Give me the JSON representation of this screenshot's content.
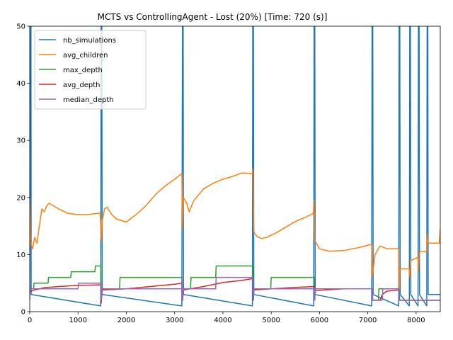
{
  "chart_data": {
    "type": "line",
    "title": "MCTS vs ControllingAgent - Lost (20%) [Time: 720 (s)]",
    "xlabel": "",
    "ylabel": "",
    "xlim": [
      0,
      8500
    ],
    "ylim": [
      0,
      50
    ],
    "x_ticks": [
      0,
      1000,
      2000,
      3000,
      4000,
      5000,
      6000,
      7000,
      8000
    ],
    "y_ticks": [
      0,
      10,
      20,
      30,
      40,
      50
    ],
    "grid": false,
    "legend_position": "upper-left",
    "series": [
      {
        "name": "nb_simulations",
        "color": "#1f77b4",
        "points": [
          [
            0,
            2
          ],
          [
            20,
            60
          ],
          [
            25,
            60
          ],
          [
            30,
            3
          ],
          [
            1470,
            1
          ],
          [
            1480,
            60
          ],
          [
            1490,
            60
          ],
          [
            1500,
            3
          ],
          [
            3150,
            1
          ],
          [
            3165,
            60
          ],
          [
            3175,
            60
          ],
          [
            3185,
            3
          ],
          [
            4610,
            1
          ],
          [
            4620,
            60
          ],
          [
            4630,
            60
          ],
          [
            4640,
            3
          ],
          [
            5880,
            1
          ],
          [
            5890,
            60
          ],
          [
            5900,
            60
          ],
          [
            5910,
            3
          ],
          [
            7080,
            1
          ],
          [
            7090,
            60
          ],
          [
            7100,
            60
          ],
          [
            7110,
            3
          ],
          [
            7640,
            1
          ],
          [
            7650,
            60
          ],
          [
            7660,
            60
          ],
          [
            7670,
            3
          ],
          [
            7860,
            1
          ],
          [
            7870,
            60
          ],
          [
            7880,
            60
          ],
          [
            7890,
            3
          ],
          [
            8040,
            1
          ],
          [
            8050,
            60
          ],
          [
            8060,
            60
          ],
          [
            8070,
            3
          ],
          [
            8220,
            1
          ],
          [
            8230,
            60
          ],
          [
            8240,
            60
          ],
          [
            8250,
            3
          ],
          [
            8500,
            3
          ]
        ]
      },
      {
        "name": "avg_children",
        "color": "#ff7f0e",
        "points": [
          [
            0,
            20
          ],
          [
            20,
            12
          ],
          [
            60,
            11
          ],
          [
            100,
            13
          ],
          [
            150,
            12
          ],
          [
            200,
            15
          ],
          [
            250,
            18
          ],
          [
            300,
            17.5
          ],
          [
            350,
            18.5
          ],
          [
            400,
            19
          ],
          [
            500,
            18.5
          ],
          [
            600,
            18
          ],
          [
            800,
            17.2
          ],
          [
            1000,
            17
          ],
          [
            1200,
            17
          ],
          [
            1400,
            17.2
          ],
          [
            1460,
            17.3
          ],
          [
            1480,
            12.5
          ],
          [
            1500,
            16
          ],
          [
            1550,
            18
          ],
          [
            1600,
            18.3
          ],
          [
            1700,
            17
          ],
          [
            1800,
            16.2
          ],
          [
            2000,
            15.7
          ],
          [
            2200,
            17
          ],
          [
            2400,
            18.5
          ],
          [
            2600,
            20.5
          ],
          [
            2800,
            22
          ],
          [
            3000,
            23.2
          ],
          [
            3150,
            24.2
          ],
          [
            3165,
            14.5
          ],
          [
            3180,
            20
          ],
          [
            3250,
            19
          ],
          [
            3300,
            17.5
          ],
          [
            3400,
            19.5
          ],
          [
            3600,
            21.5
          ],
          [
            3800,
            22.5
          ],
          [
            4000,
            23.2
          ],
          [
            4200,
            23.7
          ],
          [
            4400,
            24.3
          ],
          [
            4610,
            24.2
          ],
          [
            4620,
            25
          ],
          [
            4640,
            14
          ],
          [
            4700,
            13.2
          ],
          [
            4800,
            12.8
          ],
          [
            4900,
            13
          ],
          [
            5100,
            13.8
          ],
          [
            5300,
            14.8
          ],
          [
            5500,
            15.8
          ],
          [
            5700,
            16.5
          ],
          [
            5870,
            17.2
          ],
          [
            5885,
            19.5
          ],
          [
            5900,
            12.5
          ],
          [
            6000,
            11
          ],
          [
            6200,
            10.6
          ],
          [
            6500,
            10.7
          ],
          [
            6800,
            11.2
          ],
          [
            7080,
            11.8
          ],
          [
            7090,
            6
          ],
          [
            7150,
            10
          ],
          [
            7250,
            11.5
          ],
          [
            7400,
            11
          ],
          [
            7640,
            11
          ],
          [
            7650,
            3
          ],
          [
            7660,
            7.5
          ],
          [
            7860,
            7.5
          ],
          [
            7870,
            6
          ],
          [
            7890,
            9
          ],
          [
            8040,
            9.5
          ],
          [
            8050,
            7
          ],
          [
            8060,
            10.5
          ],
          [
            8220,
            10.5
          ],
          [
            8230,
            13.5
          ],
          [
            8240,
            12
          ],
          [
            8480,
            12
          ],
          [
            8500,
            14.5
          ]
        ]
      },
      {
        "name": "max_depth",
        "color": "#2ca02c",
        "points": [
          [
            0,
            4
          ],
          [
            80,
            4
          ],
          [
            90,
            5
          ],
          [
            380,
            5
          ],
          [
            390,
            6
          ],
          [
            850,
            6
          ],
          [
            860,
            7
          ],
          [
            1350,
            7
          ],
          [
            1360,
            8
          ],
          [
            1470,
            8
          ],
          [
            1480,
            2
          ],
          [
            1500,
            4
          ],
          [
            1860,
            4
          ],
          [
            1870,
            6
          ],
          [
            3150,
            6
          ],
          [
            3165,
            2
          ],
          [
            3180,
            4
          ],
          [
            3330,
            4
          ],
          [
            3340,
            6
          ],
          [
            3850,
            6
          ],
          [
            3860,
            8
          ],
          [
            4620,
            8
          ],
          [
            4630,
            2
          ],
          [
            4640,
            4
          ],
          [
            4990,
            4
          ],
          [
            5000,
            6
          ],
          [
            5890,
            6
          ],
          [
            5900,
            2
          ],
          [
            5910,
            4
          ],
          [
            7090,
            4
          ],
          [
            7100,
            2
          ],
          [
            7220,
            2
          ],
          [
            7230,
            4
          ],
          [
            7650,
            4
          ],
          [
            7660,
            2
          ],
          [
            8500,
            2
          ]
        ]
      },
      {
        "name": "avg_depth",
        "color": "#d62728",
        "points": [
          [
            0,
            3.5
          ],
          [
            100,
            3.8
          ],
          [
            300,
            4.2
          ],
          [
            600,
            4.4
          ],
          [
            1000,
            4.6
          ],
          [
            1470,
            4.7
          ],
          [
            1480,
            1.5
          ],
          [
            1500,
            3.8
          ],
          [
            2000,
            4
          ],
          [
            2500,
            4.4
          ],
          [
            3000,
            4.8
          ],
          [
            3150,
            5
          ],
          [
            3165,
            2
          ],
          [
            3180,
            3.8
          ],
          [
            3600,
            4.4
          ],
          [
            4000,
            5.1
          ],
          [
            4400,
            5.5
          ],
          [
            4620,
            5.8
          ],
          [
            4630,
            2
          ],
          [
            4640,
            3.8
          ],
          [
            5000,
            4
          ],
          [
            5400,
            4.2
          ],
          [
            5890,
            4.4
          ],
          [
            5900,
            2
          ],
          [
            5910,
            3.7
          ],
          [
            6500,
            4
          ],
          [
            7090,
            4
          ],
          [
            7100,
            2
          ],
          [
            7250,
            2
          ],
          [
            7300,
            3
          ],
          [
            7400,
            3.6
          ],
          [
            7640,
            3.8
          ],
          [
            7650,
            2
          ],
          [
            8500,
            2
          ]
        ]
      },
      {
        "name": "median_depth",
        "color": "#9467bd",
        "points": [
          [
            0,
            4
          ],
          [
            1000,
            4
          ],
          [
            1010,
            5
          ],
          [
            1470,
            5
          ],
          [
            1480,
            2
          ],
          [
            1500,
            4
          ],
          [
            3150,
            4
          ],
          [
            3155,
            6
          ],
          [
            3165,
            2
          ],
          [
            3180,
            4
          ],
          [
            3850,
            4
          ],
          [
            3860,
            6
          ],
          [
            4620,
            6
          ],
          [
            4630,
            2
          ],
          [
            4640,
            4
          ],
          [
            5890,
            4
          ],
          [
            5900,
            2
          ],
          [
            5910,
            4
          ],
          [
            7090,
            4
          ],
          [
            7100,
            2
          ],
          [
            7300,
            2
          ],
          [
            7310,
            4
          ],
          [
            7640,
            4
          ],
          [
            7650,
            2
          ],
          [
            8500,
            2
          ]
        ]
      }
    ]
  }
}
